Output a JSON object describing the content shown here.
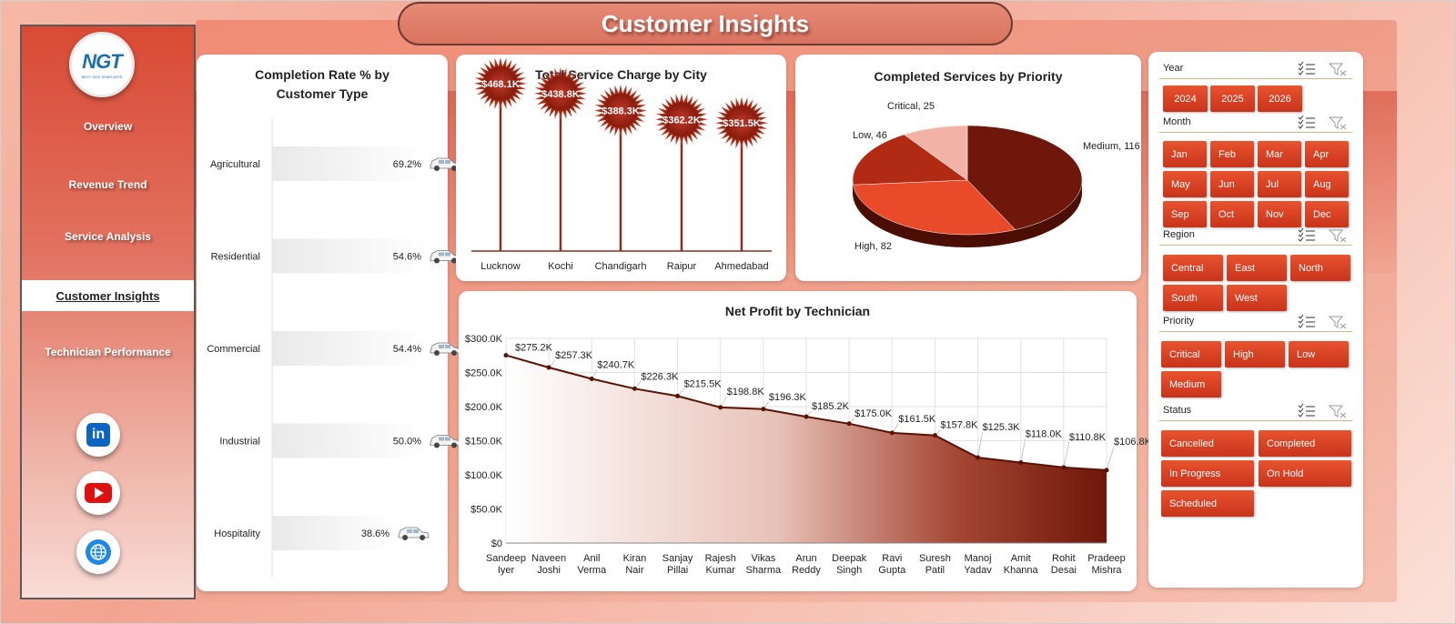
{
  "header": {
    "title": "Customer Insights"
  },
  "sidebar": {
    "logo_text": "NGT",
    "logo_sub": "NEXT GEN TEMPLATES",
    "items": [
      {
        "label": "Overview"
      },
      {
        "label": "Revenue Trend"
      },
      {
        "label": "Service Analysis"
      },
      {
        "label": "Customer Insights",
        "active": true
      },
      {
        "label": "Technician Performance"
      }
    ],
    "social": [
      "linkedin-icon",
      "youtube-icon",
      "globe-icon"
    ]
  },
  "colors": {
    "accent": "#d23b1f",
    "dark": "#7a1a0c",
    "sidebar_top": "#d94a34"
  },
  "chart_data": [
    {
      "id": "completion",
      "type": "bar",
      "title": "Completion Rate % by Customer Type",
      "categories": [
        "Agricultural",
        "Residential",
        "Commercial",
        "Industrial",
        "Hospitality"
      ],
      "values": [
        69.2,
        54.6,
        54.4,
        50.0,
        38.6
      ],
      "labels": [
        "69.2%",
        "54.6%",
        "54.4%",
        "50.0%",
        "38.6%"
      ],
      "xlim": [
        0,
        100
      ]
    },
    {
      "id": "service_charge",
      "type": "bar",
      "title": "Total Service Charge by City",
      "categories": [
        "Lucknow",
        "Kochi",
        "Chandigarh",
        "Raipur",
        "Ahmedabad"
      ],
      "values": [
        468.1,
        438.8,
        388.3,
        362.2,
        351.5
      ],
      "labels": [
        "$468.1K",
        "$438.8K",
        "$388.3K",
        "$362.2K",
        "$351.5K"
      ],
      "ylim": [
        0,
        500
      ]
    },
    {
      "id": "priority",
      "type": "pie",
      "title": "Completed Services by Priority",
      "categories": [
        "Medium",
        "High",
        "Low",
        "Critical"
      ],
      "values": [
        116,
        82,
        46,
        25
      ],
      "labels": [
        "Medium, 116",
        "High, 82",
        "Low, 46",
        "Critical, 25"
      ]
    },
    {
      "id": "net_profit",
      "type": "area",
      "title": "Net Profit by Technician",
      "categories": [
        "Sandeep Iyer",
        "Naveen Joshi",
        "Anil Verma",
        "Kiran Nair",
        "Sanjay Pillai",
        "Rajesh Kumar",
        "Vikas Sharma",
        "Arun Reddy",
        "Deepak Singh",
        "Ravi Gupta",
        "Suresh Patil",
        "Manoj Yadav",
        "Amit Khanna",
        "Rohit Desai",
        "Pradeep Mishra"
      ],
      "cat_lines": [
        [
          "Sandeep",
          "Iyer"
        ],
        [
          "Naveen",
          "Joshi"
        ],
        [
          "Anil",
          "Verma"
        ],
        [
          "Kiran",
          "Nair"
        ],
        [
          "Sanjay",
          "Pillai"
        ],
        [
          "Rajesh",
          "Kumar"
        ],
        [
          "Vikas",
          "Sharma"
        ],
        [
          "Arun",
          "Reddy"
        ],
        [
          "Deepak",
          "Singh"
        ],
        [
          "Ravi",
          "Gupta"
        ],
        [
          "Suresh",
          "Patil"
        ],
        [
          "Manoj",
          "Yadav"
        ],
        [
          "Amit",
          "Khanna"
        ],
        [
          "Rohit",
          "Desai"
        ],
        [
          "Pradeep",
          "Mishra"
        ]
      ],
      "values": [
        275.2,
        257.3,
        240.7,
        226.3,
        215.5,
        198.8,
        196.3,
        185.2,
        175.0,
        161.5,
        157.8,
        125.3,
        118.0,
        110.8,
        106.8
      ],
      "labels": [
        "$275.2K",
        "$257.3K",
        "$240.7K",
        "$226.3K",
        "$215.5K",
        "$198.8K",
        "$196.3K",
        "$185.2K",
        "$175.0K",
        "$161.5K",
        "$157.8K",
        "$125.3K",
        "$118.0K",
        "$110.8K",
        "$106.8K"
      ],
      "yticks": [
        "$0",
        "$50.0K",
        "$100.0K",
        "$150.0K",
        "$200.0K",
        "$250.0K",
        "$300.0K"
      ],
      "ylim": [
        0,
        300
      ],
      "grid": true
    }
  ],
  "slicers": [
    {
      "label": "Year",
      "buttons": [
        "2024",
        "2025",
        "2026"
      ]
    },
    {
      "label": "Month",
      "buttons": [
        "Jan",
        "Feb",
        "Mar",
        "Apr",
        "May",
        "Jun",
        "Jul",
        "Aug",
        "Sep",
        "Oct",
        "Nov",
        "Dec"
      ]
    },
    {
      "label": "Region",
      "buttons": [
        "Central",
        "East",
        "North",
        "South",
        "West"
      ]
    },
    {
      "label": "Priority",
      "buttons": [
        "Critical",
        "High",
        "Low",
        "Medium"
      ]
    },
    {
      "label": "Status",
      "buttons": [
        "Cancelled",
        "Completed",
        "In Progress",
        "On Hold",
        "Scheduled"
      ]
    }
  ]
}
